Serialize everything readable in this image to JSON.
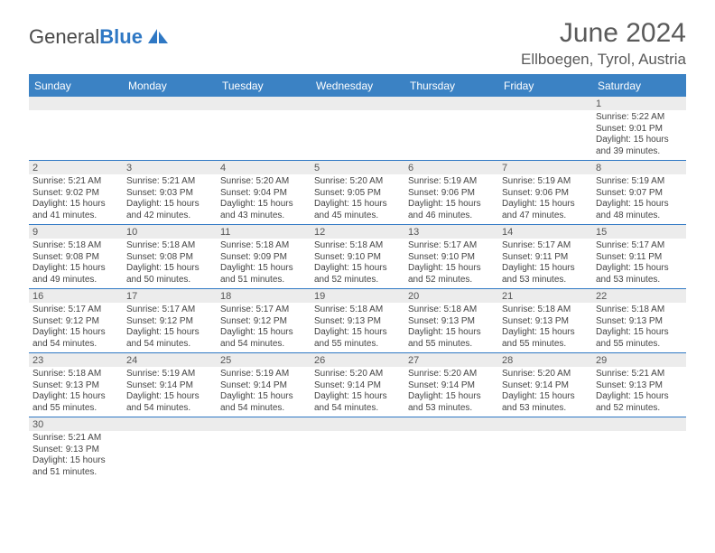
{
  "brand": {
    "part1": "General",
    "part2": "Blue"
  },
  "title": "June 2024",
  "location": "Ellboegen, Tyrol, Austria",
  "colors": {
    "header_bg": "#3b82c4",
    "header_border": "#2f78c4",
    "daynum_bg": "#ececec",
    "text": "#444444",
    "title_text": "#5a5a5a"
  },
  "day_names": [
    "Sunday",
    "Monday",
    "Tuesday",
    "Wednesday",
    "Thursday",
    "Friday",
    "Saturday"
  ],
  "weeks": [
    [
      null,
      null,
      null,
      null,
      null,
      null,
      {
        "n": "1",
        "sr": "Sunrise: 5:22 AM",
        "ss": "Sunset: 9:01 PM",
        "d1": "Daylight: 15 hours",
        "d2": "and 39 minutes."
      }
    ],
    [
      {
        "n": "2",
        "sr": "Sunrise: 5:21 AM",
        "ss": "Sunset: 9:02 PM",
        "d1": "Daylight: 15 hours",
        "d2": "and 41 minutes."
      },
      {
        "n": "3",
        "sr": "Sunrise: 5:21 AM",
        "ss": "Sunset: 9:03 PM",
        "d1": "Daylight: 15 hours",
        "d2": "and 42 minutes."
      },
      {
        "n": "4",
        "sr": "Sunrise: 5:20 AM",
        "ss": "Sunset: 9:04 PM",
        "d1": "Daylight: 15 hours",
        "d2": "and 43 minutes."
      },
      {
        "n": "5",
        "sr": "Sunrise: 5:20 AM",
        "ss": "Sunset: 9:05 PM",
        "d1": "Daylight: 15 hours",
        "d2": "and 45 minutes."
      },
      {
        "n": "6",
        "sr": "Sunrise: 5:19 AM",
        "ss": "Sunset: 9:06 PM",
        "d1": "Daylight: 15 hours",
        "d2": "and 46 minutes."
      },
      {
        "n": "7",
        "sr": "Sunrise: 5:19 AM",
        "ss": "Sunset: 9:06 PM",
        "d1": "Daylight: 15 hours",
        "d2": "and 47 minutes."
      },
      {
        "n": "8",
        "sr": "Sunrise: 5:19 AM",
        "ss": "Sunset: 9:07 PM",
        "d1": "Daylight: 15 hours",
        "d2": "and 48 minutes."
      }
    ],
    [
      {
        "n": "9",
        "sr": "Sunrise: 5:18 AM",
        "ss": "Sunset: 9:08 PM",
        "d1": "Daylight: 15 hours",
        "d2": "and 49 minutes."
      },
      {
        "n": "10",
        "sr": "Sunrise: 5:18 AM",
        "ss": "Sunset: 9:08 PM",
        "d1": "Daylight: 15 hours",
        "d2": "and 50 minutes."
      },
      {
        "n": "11",
        "sr": "Sunrise: 5:18 AM",
        "ss": "Sunset: 9:09 PM",
        "d1": "Daylight: 15 hours",
        "d2": "and 51 minutes."
      },
      {
        "n": "12",
        "sr": "Sunrise: 5:18 AM",
        "ss": "Sunset: 9:10 PM",
        "d1": "Daylight: 15 hours",
        "d2": "and 52 minutes."
      },
      {
        "n": "13",
        "sr": "Sunrise: 5:17 AM",
        "ss": "Sunset: 9:10 PM",
        "d1": "Daylight: 15 hours",
        "d2": "and 52 minutes."
      },
      {
        "n": "14",
        "sr": "Sunrise: 5:17 AM",
        "ss": "Sunset: 9:11 PM",
        "d1": "Daylight: 15 hours",
        "d2": "and 53 minutes."
      },
      {
        "n": "15",
        "sr": "Sunrise: 5:17 AM",
        "ss": "Sunset: 9:11 PM",
        "d1": "Daylight: 15 hours",
        "d2": "and 53 minutes."
      }
    ],
    [
      {
        "n": "16",
        "sr": "Sunrise: 5:17 AM",
        "ss": "Sunset: 9:12 PM",
        "d1": "Daylight: 15 hours",
        "d2": "and 54 minutes."
      },
      {
        "n": "17",
        "sr": "Sunrise: 5:17 AM",
        "ss": "Sunset: 9:12 PM",
        "d1": "Daylight: 15 hours",
        "d2": "and 54 minutes."
      },
      {
        "n": "18",
        "sr": "Sunrise: 5:17 AM",
        "ss": "Sunset: 9:12 PM",
        "d1": "Daylight: 15 hours",
        "d2": "and 54 minutes."
      },
      {
        "n": "19",
        "sr": "Sunrise: 5:18 AM",
        "ss": "Sunset: 9:13 PM",
        "d1": "Daylight: 15 hours",
        "d2": "and 55 minutes."
      },
      {
        "n": "20",
        "sr": "Sunrise: 5:18 AM",
        "ss": "Sunset: 9:13 PM",
        "d1": "Daylight: 15 hours",
        "d2": "and 55 minutes."
      },
      {
        "n": "21",
        "sr": "Sunrise: 5:18 AM",
        "ss": "Sunset: 9:13 PM",
        "d1": "Daylight: 15 hours",
        "d2": "and 55 minutes."
      },
      {
        "n": "22",
        "sr": "Sunrise: 5:18 AM",
        "ss": "Sunset: 9:13 PM",
        "d1": "Daylight: 15 hours",
        "d2": "and 55 minutes."
      }
    ],
    [
      {
        "n": "23",
        "sr": "Sunrise: 5:18 AM",
        "ss": "Sunset: 9:13 PM",
        "d1": "Daylight: 15 hours",
        "d2": "and 55 minutes."
      },
      {
        "n": "24",
        "sr": "Sunrise: 5:19 AM",
        "ss": "Sunset: 9:14 PM",
        "d1": "Daylight: 15 hours",
        "d2": "and 54 minutes."
      },
      {
        "n": "25",
        "sr": "Sunrise: 5:19 AM",
        "ss": "Sunset: 9:14 PM",
        "d1": "Daylight: 15 hours",
        "d2": "and 54 minutes."
      },
      {
        "n": "26",
        "sr": "Sunrise: 5:20 AM",
        "ss": "Sunset: 9:14 PM",
        "d1": "Daylight: 15 hours",
        "d2": "and 54 minutes."
      },
      {
        "n": "27",
        "sr": "Sunrise: 5:20 AM",
        "ss": "Sunset: 9:14 PM",
        "d1": "Daylight: 15 hours",
        "d2": "and 53 minutes."
      },
      {
        "n": "28",
        "sr": "Sunrise: 5:20 AM",
        "ss": "Sunset: 9:14 PM",
        "d1": "Daylight: 15 hours",
        "d2": "and 53 minutes."
      },
      {
        "n": "29",
        "sr": "Sunrise: 5:21 AM",
        "ss": "Sunset: 9:13 PM",
        "d1": "Daylight: 15 hours",
        "d2": "and 52 minutes."
      }
    ],
    [
      {
        "n": "30",
        "sr": "Sunrise: 5:21 AM",
        "ss": "Sunset: 9:13 PM",
        "d1": "Daylight: 15 hours",
        "d2": "and 51 minutes."
      },
      null,
      null,
      null,
      null,
      null,
      null
    ]
  ]
}
